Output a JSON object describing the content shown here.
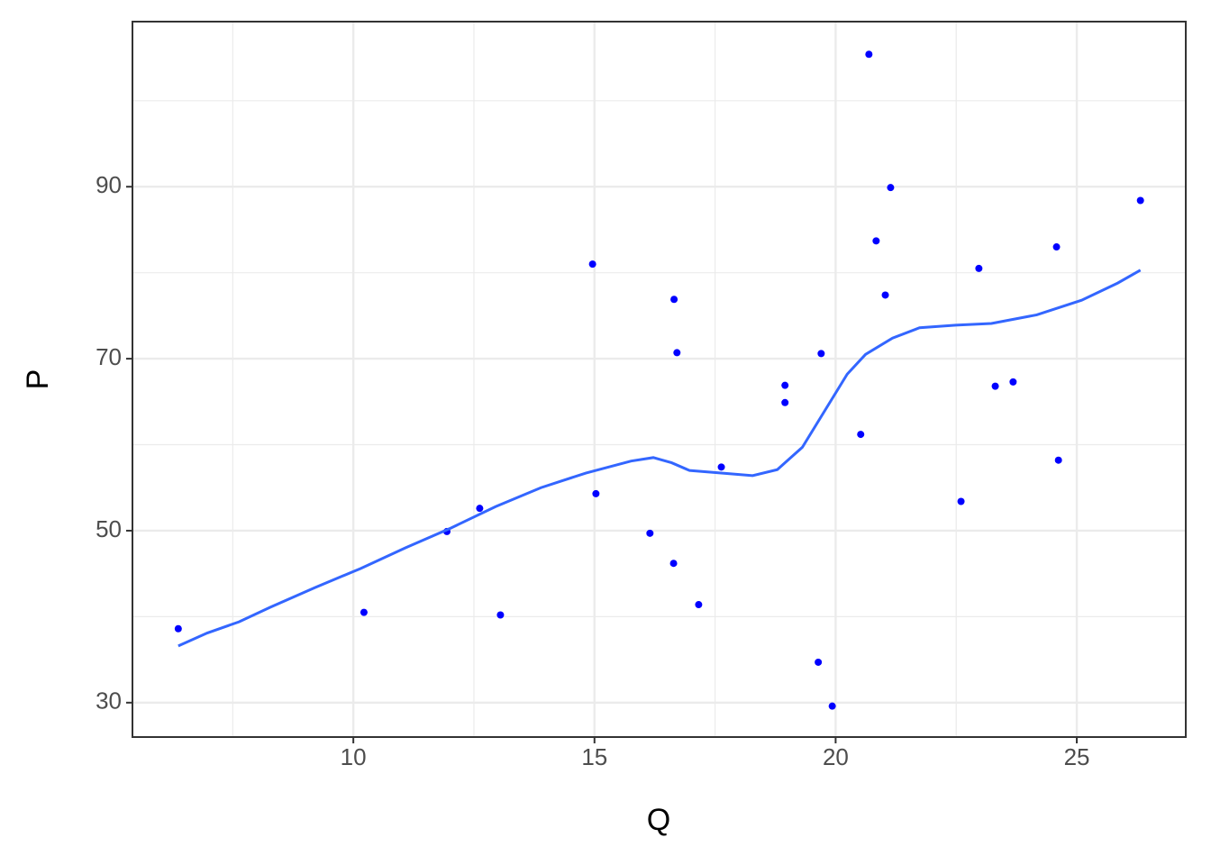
{
  "chart_data": {
    "type": "scatter",
    "x_label": "Q",
    "y_label": "P",
    "xlim": [
      5.42,
      27.26
    ],
    "ylim": [
      26.0,
      109.2
    ],
    "xticks": [
      10,
      15,
      20,
      25
    ],
    "yticks": [
      30,
      50,
      70,
      90
    ],
    "grid": true,
    "minor_grid": true,
    "series": [
      {
        "type": "scatter",
        "color": "#0000ff",
        "x": [
          6.37,
          10.22,
          11.94,
          12.62,
          13.05,
          14.96,
          15.03,
          16.15,
          16.64,
          16.65,
          16.71,
          17.16,
          17.63,
          18.95,
          18.95,
          19.64,
          19.7,
          19.93,
          20.52,
          20.69,
          20.84,
          21.03,
          21.14,
          22.6,
          22.97,
          23.31,
          23.68,
          24.58,
          24.62,
          26.32
        ],
        "values": [
          38.6,
          40.5,
          49.9,
          52.6,
          40.2,
          81.0,
          54.3,
          49.7,
          46.2,
          76.9,
          70.7,
          41.4,
          57.4,
          66.9,
          64.9,
          34.7,
          70.6,
          29.6,
          61.2,
          105.4,
          83.7,
          77.4,
          89.9,
          53.4,
          80.5,
          66.8,
          67.3,
          83.0,
          58.2,
          88.4
        ]
      },
      {
        "type": "line",
        "color": "#3366ff",
        "x": [
          6.37,
          6.97,
          7.63,
          8.28,
          9.21,
          10.15,
          11.08,
          12.02,
          12.95,
          13.89,
          14.82,
          15.76,
          16.22,
          16.6,
          16.97,
          17.63,
          18.28,
          18.79,
          19.31,
          19.78,
          20.24,
          20.62,
          21.18,
          21.74,
          22.49,
          23.23,
          24.17,
          25.1,
          25.85,
          26.32
        ],
        "values": [
          36.6,
          38.1,
          39.4,
          41.1,
          43.4,
          45.6,
          48.0,
          50.3,
          52.8,
          55.0,
          56.7,
          58.1,
          58.5,
          57.9,
          57.0,
          56.7,
          56.4,
          57.1,
          59.7,
          64.0,
          68.2,
          70.5,
          72.4,
          73.6,
          73.9,
          74.1,
          75.1,
          76.8,
          78.8,
          80.3
        ]
      }
    ]
  }
}
